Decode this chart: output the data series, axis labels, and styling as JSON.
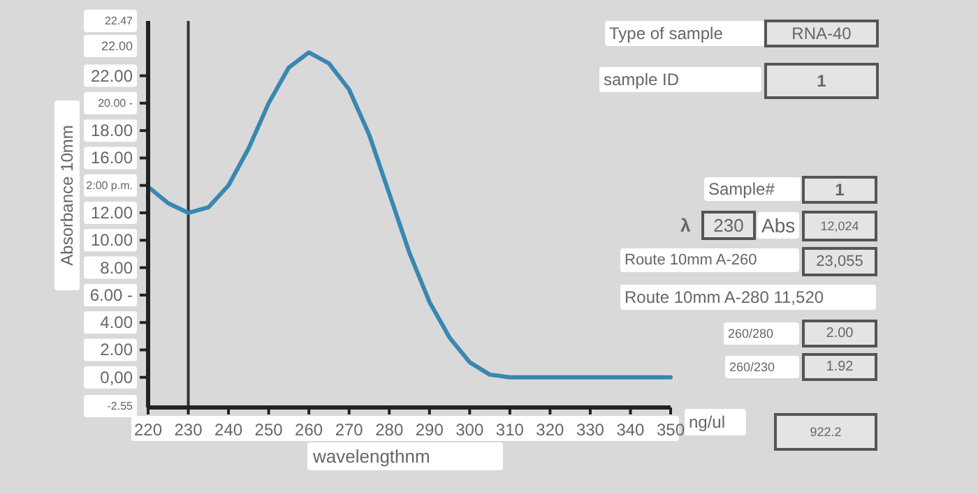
{
  "chart_data": {
    "type": "line",
    "xlabel": "wavelengthnm",
    "ylabel": "Absorbance 10mm",
    "x": [
      220,
      225,
      230,
      235,
      240,
      245,
      250,
      255,
      260,
      265,
      270,
      275,
      280,
      285,
      290,
      295,
      300,
      305,
      310,
      320,
      330,
      340,
      350
    ],
    "series": [
      {
        "color": "#3a87b0",
        "values": [
          13.9,
          12.7,
          12.0,
          12.4,
          14.0,
          16.7,
          20.0,
          22.6,
          23.7,
          22.9,
          21.0,
          17.7,
          13.4,
          9.1,
          5.5,
          2.9,
          1.1,
          0.2,
          0,
          0,
          0,
          0,
          0
        ]
      }
    ],
    "xlim": [
      220,
      350
    ],
    "xticks": [
      220,
      230,
      240,
      250,
      260,
      270,
      280,
      290,
      300,
      310,
      320,
      330,
      340,
      350
    ],
    "ylim": [
      -2.2,
      26
    ],
    "yticks": [
      {
        "value": 22,
        "label": "22.00"
      },
      {
        "value": 20,
        "label": "20.00 -"
      },
      {
        "value": 18,
        "label": "18.00"
      },
      {
        "value": 16,
        "label": "16.00"
      },
      {
        "value": 14,
        "label": "2:00 p.m."
      },
      {
        "value": 12,
        "label": "12.00"
      },
      {
        "value": 10,
        "label": "10.00"
      },
      {
        "value": 8,
        "label": "8.00"
      },
      {
        "value": 6,
        "label": "6.00 -"
      },
      {
        "value": 4,
        "label": "4.00"
      },
      {
        "value": 2,
        "label": "2.00"
      },
      {
        "value": 0,
        "label": "0,00"
      }
    ],
    "ref_lines": [
      {
        "axis": "x",
        "value": 230,
        "color": "#333333"
      }
    ],
    "line_style": "solid",
    "grid": false,
    "annotations": [
      "Type of sample",
      "RNA-40",
      "sample ID",
      "1",
      "Sample#",
      "1",
      "λ",
      "230",
      "Abs",
      "12,024",
      "Route 10mm A-260",
      "23,055",
      "Route 10mm A-280 11,520",
      "260/280",
      "2.00",
      "260/230",
      "1.92",
      "ng/ul",
      "922.2",
      "22.47",
      "22.00",
      "-2.55"
    ]
  }
}
